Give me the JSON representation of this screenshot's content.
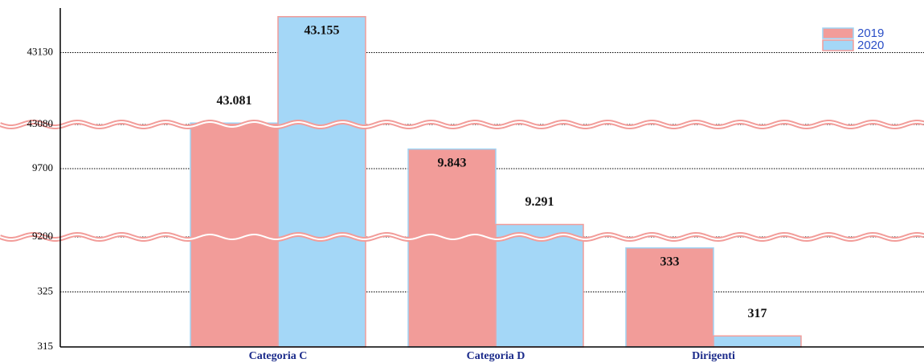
{
  "chart_data": {
    "type": "bar",
    "categories": [
      "Categoria C",
      "Categoria D",
      "Dirigenti"
    ],
    "series": [
      {
        "name": "2019",
        "color": "#f29c99",
        "edge": "#9fd3f4",
        "values": [
          43081,
          9843,
          333
        ],
        "value_labels": [
          "43.081",
          "9.843",
          "333"
        ]
      },
      {
        "name": "2020",
        "color": "#a4d7f7",
        "edge": "#f29c99",
        "values": [
          43155,
          9291,
          317
        ],
        "value_labels": [
          "43.155",
          "9.291",
          "317"
        ]
      }
    ],
    "y_segments": [
      {
        "ylim": [
          315,
          335
        ],
        "yticks": [
          315,
          325
        ]
      },
      {
        "ylim": [
          9200,
          10023
        ],
        "yticks": [
          9200,
          9700
        ]
      },
      {
        "ylim": [
          43080,
          43161
        ],
        "yticks": [
          43080,
          43130
        ]
      }
    ],
    "grid": true,
    "legend": "top-right"
  }
}
